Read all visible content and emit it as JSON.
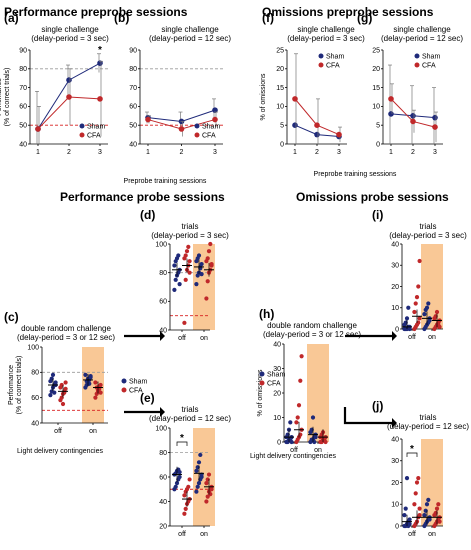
{
  "colors": {
    "sham": "#1f2a7a",
    "cfa": "#c0282a",
    "chance": "#d81e1e",
    "ref": "#9a9a9a",
    "shade": "#f9c896",
    "arrow": "#000000"
  },
  "section_titles": {
    "perf_pre": "Performance preprobe sessions",
    "om_pre": "Omissions preprobe sessions",
    "perf_probe": "Performance probe sessions",
    "om_probe": "Omissions probe sessions"
  },
  "shared_labels": {
    "perf_pre_x": "Preprobe training sessions",
    "om_pre_x": "Preprobe training sessions",
    "perf_c_x": "Light delivery contingencies",
    "om_h_x": "Light delivery contingencies"
  },
  "legend_entries": [
    "Sham",
    "CFA"
  ],
  "chart_data": [
    {
      "id": "a",
      "panel_label": "(a)",
      "type": "line",
      "title": "single challenge",
      "subtitle": "(delay-period = 3 sec)",
      "ylabel": "Perfomance",
      "ylabel2": "(% of correct trials)",
      "x": [
        1,
        2,
        3
      ],
      "ylim": [
        40,
        90
      ],
      "yticks": [
        40,
        50,
        60,
        70,
        80,
        90
      ],
      "ref_line": 80,
      "chance_line": 50,
      "star": "*",
      "legend": "bottom-right",
      "legend_entries": [
        "Sham",
        "CFA"
      ],
      "series": [
        {
          "name": "Sham",
          "values": [
            48,
            74,
            83
          ],
          "err": [
            20,
            8,
            5
          ]
        },
        {
          "name": "CFA",
          "values": [
            48,
            65,
            64
          ],
          "err": [
            12,
            15,
            20
          ]
        }
      ]
    },
    {
      "id": "b",
      "panel_label": "(b)",
      "type": "line",
      "title": "single challenge",
      "subtitle": "(delay-period = 12 sec)",
      "x": [
        1,
        2,
        3
      ],
      "ylim": [
        40,
        90
      ],
      "yticks": [
        40,
        50,
        60,
        70,
        80,
        90
      ],
      "ref_line": 80,
      "chance_line": 50,
      "legend": "bottom-right",
      "legend_entries": [
        "Sham",
        "CFA"
      ],
      "series": [
        {
          "name": "Sham",
          "values": [
            54,
            52,
            58
          ],
          "err": [
            3,
            5,
            6
          ]
        },
        {
          "name": "CFA",
          "values": [
            53,
            48,
            53
          ],
          "err": [
            2,
            4,
            4
          ]
        }
      ]
    },
    {
      "id": "f",
      "panel_label": "(f)",
      "type": "line",
      "title": "single challenge",
      "subtitle": "(delay-period = 3 sec)",
      "ylabel": "% of omissions",
      "x": [
        1,
        2,
        3
      ],
      "ylim": [
        0,
        25
      ],
      "yticks": [
        0,
        5,
        10,
        15,
        20,
        25
      ],
      "legend": "top-right",
      "legend_entries": [
        "Sham",
        "CFA"
      ],
      "series": [
        {
          "name": "Sham",
          "values": [
            5,
            2.5,
            2
          ],
          "err": [
            0,
            0,
            0
          ]
        },
        {
          "name": "CFA",
          "values": [
            12,
            5,
            2.5
          ],
          "err": [
            12,
            7,
            2
          ]
        }
      ]
    },
    {
      "id": "g",
      "panel_label": "(g)",
      "type": "line",
      "title": "single challenge",
      "subtitle": "(delay-period = 12 sec)",
      "x": [
        1,
        2,
        3
      ],
      "ylim": [
        0,
        25
      ],
      "yticks": [
        0,
        5,
        10,
        15,
        20,
        25
      ],
      "legend": "top-right",
      "legend_entries": [
        "Sham",
        "CFA"
      ],
      "series": [
        {
          "name": "Sham",
          "values": [
            8,
            7.5,
            7
          ],
          "err": [
            13,
            8,
            8
          ]
        },
        {
          "name": "CFA",
          "values": [
            12,
            6,
            4.5
          ],
          "err": [
            4,
            3,
            4
          ]
        }
      ]
    },
    {
      "id": "c",
      "panel_label": "(c)",
      "type": "scatter",
      "title": "double random challenge",
      "subtitle": "(delay-period = 3 or 12 sec)",
      "ylabel": "Performance",
      "ylabel2": "(% of correct trials)",
      "categories": [
        "off",
        "on"
      ],
      "ylim": [
        40,
        100
      ],
      "yticks": [
        40,
        60,
        80,
        100
      ],
      "ref_line": 80,
      "chance_line": 50,
      "shaded": [
        "on"
      ],
      "legend": "right",
      "legend_entries": [
        "Sham",
        "CFA"
      ],
      "series": [
        {
          "name": "Sham",
          "group_means": [
            70,
            74
          ],
          "points": [
            [
              62,
              65,
              68,
              70,
              72,
              73,
              75,
              78,
              64,
              70
            ],
            [
              68,
              70,
              72,
              74,
              76,
              78,
              73,
              75,
              71,
              77
            ]
          ]
        },
        {
          "name": "CFA",
          "group_means": [
            65,
            68
          ],
          "points": [
            [
              58,
              60,
              63,
              65,
              67,
              68,
              70,
              55,
              64,
              72
            ],
            [
              60,
              63,
              65,
              67,
              70,
              72,
              68,
              66,
              69,
              64
            ]
          ]
        }
      ]
    },
    {
      "id": "d",
      "panel_label": "(d)",
      "type": "scatter",
      "title": "trials",
      "subtitle": "(delay-period = 3 sec)",
      "categories": [
        "off",
        "on"
      ],
      "ylim": [
        40,
        100
      ],
      "yticks": [
        40,
        60,
        80,
        100
      ],
      "ref_line": 80,
      "chance_line": 50,
      "shaded": [
        "on"
      ],
      "series": [
        {
          "name": "Sham",
          "group_means": [
            82,
            84
          ],
          "points": [
            [
              68,
              75,
              78,
              80,
              82,
              85,
              88,
              90,
              92,
              72
            ],
            [
              72,
              78,
              80,
              84,
              86,
              88,
              90,
              92,
              83,
              79
            ]
          ]
        },
        {
          "name": "CFA",
          "group_means": [
            85,
            82
          ],
          "points": [
            [
              45,
              75,
              82,
              85,
              88,
              90,
              92,
              95,
              98,
              80
            ],
            [
              62,
              74,
              80,
              82,
              85,
              88,
              90,
              95,
              100,
              86
            ]
          ]
        }
      ]
    },
    {
      "id": "e",
      "panel_label": "(e)",
      "type": "scatter",
      "title": "trials",
      "subtitle": "(delay-period = 12 sec)",
      "categories": [
        "off",
        "on"
      ],
      "ylim": [
        20,
        100
      ],
      "yticks": [
        20,
        40,
        60,
        80,
        100
      ],
      "ref_line": 80,
      "chance_line": 50,
      "shaded": [
        "on"
      ],
      "star": "*",
      "series": [
        {
          "name": "Sham",
          "group_means": [
            62,
            63
          ],
          "points": [
            [
              50,
              52,
              55,
              58,
              60,
              62,
              63,
              65,
              66,
              64
            ],
            [
              48,
              52,
              55,
              58,
              62,
              65,
              68,
              72,
              78,
              60
            ]
          ]
        },
        {
          "name": "CFA",
          "group_means": [
            42,
            52
          ],
          "points": [
            [
              30,
              34,
              38,
              40,
              42,
              45,
              48,
              50,
              52,
              58
            ],
            [
              40,
              44,
              48,
              50,
              52,
              55,
              58,
              62,
              46,
              50
            ]
          ]
        }
      ]
    },
    {
      "id": "h",
      "panel_label": "(h)",
      "type": "scatter",
      "title": "double random challenge",
      "subtitle": "(delay-period = 3 or 12 sec)",
      "ylabel": "% of omissions",
      "categories": [
        "off",
        "on"
      ],
      "ylim": [
        0,
        40
      ],
      "yticks": [
        0,
        10,
        20,
        30,
        40
      ],
      "shaded": [
        "on"
      ],
      "legend": "left",
      "legend_entries": [
        "Sham",
        "CFA"
      ],
      "series": [
        {
          "name": "Sham",
          "group_means": [
            2,
            3
          ],
          "points": [
            [
              0,
              0,
              1,
              1,
              2,
              2,
              3,
              5,
              8,
              0
            ],
            [
              0,
              1,
              1,
              2,
              3,
              4,
              5,
              10,
              0,
              2
            ]
          ]
        },
        {
          "name": "CFA",
          "group_means": [
            5,
            2
          ],
          "points": [
            [
              0,
              1,
              2,
              3,
              5,
              8,
              10,
              15,
              25,
              35
            ],
            [
              0,
              0,
              1,
              1,
              2,
              2,
              3,
              4,
              1,
              0
            ]
          ]
        }
      ]
    },
    {
      "id": "i",
      "panel_label": "(i)",
      "type": "scatter",
      "title": "trials",
      "subtitle": "(delay-period = 3 sec)",
      "categories": [
        "off",
        "on"
      ],
      "ylim": [
        0,
        40
      ],
      "yticks": [
        0,
        10,
        20,
        30,
        40
      ],
      "shaded": [
        "on"
      ],
      "series": [
        {
          "name": "Sham",
          "group_means": [
            1,
            5
          ],
          "points": [
            [
              0,
              0,
              0,
              1,
              1,
              2,
              3,
              5,
              10,
              0
            ],
            [
              0,
              1,
              2,
              3,
              5,
              7,
              9,
              10,
              12,
              4
            ]
          ]
        },
        {
          "name": "CFA",
          "group_means": [
            6,
            4
          ],
          "points": [
            [
              0,
              1,
              2,
              3,
              5,
              8,
              12,
              15,
              20,
              32
            ],
            [
              0,
              1,
              2,
              3,
              4,
              5,
              6,
              8,
              2,
              1
            ]
          ]
        }
      ]
    },
    {
      "id": "j",
      "panel_label": "(j)",
      "type": "scatter",
      "title": "trials",
      "subtitle": "(delay-period = 12 sec)",
      "categories": [
        "off",
        "on"
      ],
      "ylim": [
        0,
        40
      ],
      "yticks": [
        0,
        10,
        20,
        30,
        40
      ],
      "shaded": [
        "on"
      ],
      "star": "*",
      "series": [
        {
          "name": "Sham",
          "group_means": [
            2,
            4
          ],
          "points": [
            [
              0,
              0,
              1,
              2,
              3,
              5,
              8,
              22,
              0,
              1
            ],
            [
              0,
              1,
              2,
              3,
              4,
              5,
              7,
              10,
              12,
              3
            ]
          ]
        },
        {
          "name": "CFA",
          "group_means": [
            4,
            4
          ],
          "points": [
            [
              0,
              1,
              2,
              4,
              8,
              10,
              15,
              20,
              22,
              5
            ],
            [
              0,
              1,
              2,
              3,
              4,
              5,
              6,
              8,
              10,
              2
            ]
          ]
        }
      ]
    }
  ]
}
